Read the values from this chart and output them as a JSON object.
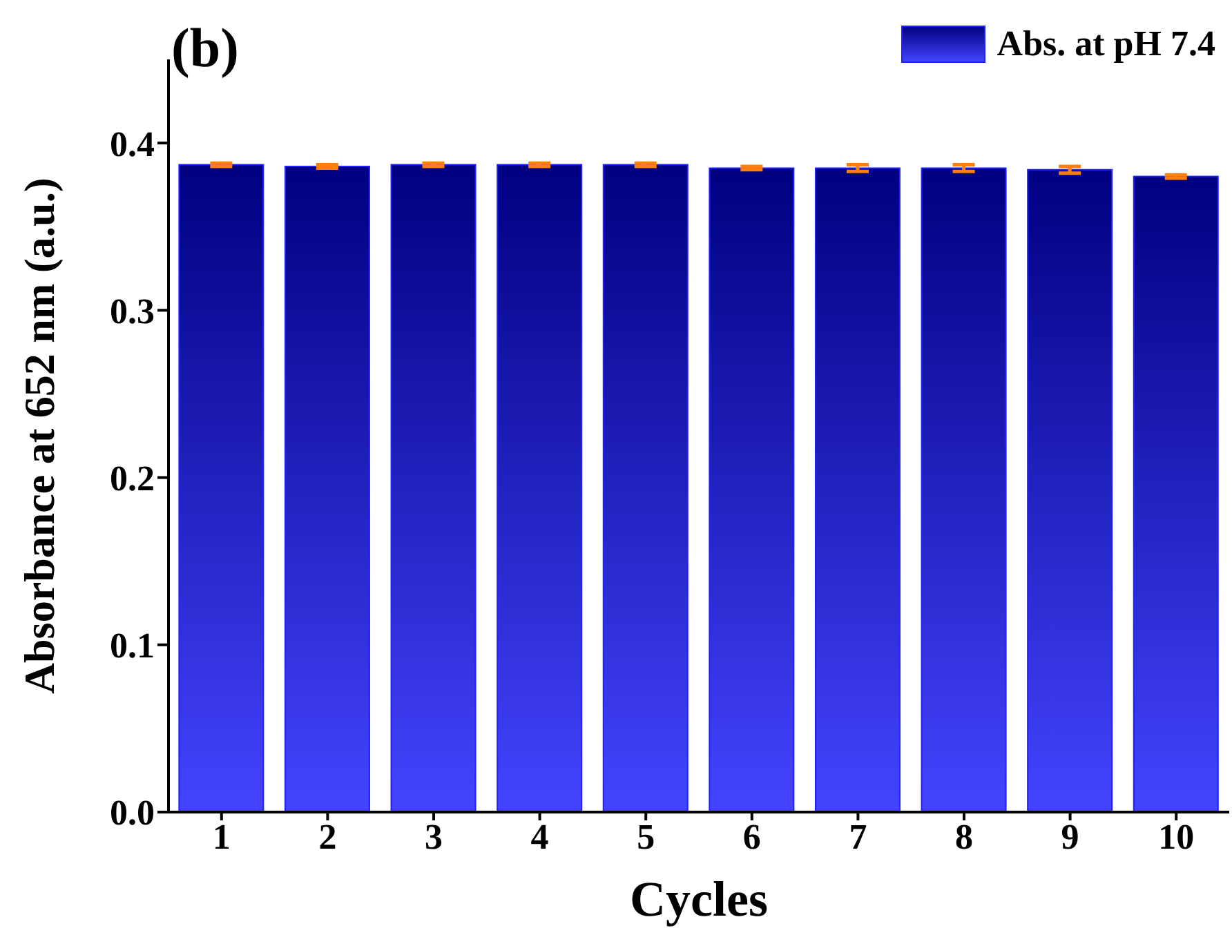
{
  "chart_data": {
    "type": "bar",
    "xlabel": "Cycles",
    "ylabel": "Absorbance at 652 nm (a.u.)",
    "annotations": [
      "(b)"
    ],
    "categories": [
      "1",
      "2",
      "3",
      "4",
      "5",
      "6",
      "7",
      "8",
      "9",
      "10"
    ],
    "series": [
      {
        "name": "Abs. at pH 7.4",
        "color": "#2020ff",
        "values": [
          0.387,
          0.386,
          0.387,
          0.387,
          0.387,
          0.385,
          0.385,
          0.385,
          0.384,
          0.38
        ],
        "errors": [
          0.001,
          0.001,
          0.001,
          0.001,
          0.001,
          0.001,
          0.002,
          0.002,
          0.002,
          0.001
        ]
      }
    ],
    "ylim": [
      0,
      0.45
    ],
    "yticks": [
      {
        "value": 0,
        "label": "0.0"
      },
      0.1,
      0.2,
      0.3,
      0.4
    ],
    "legend": "top right"
  }
}
